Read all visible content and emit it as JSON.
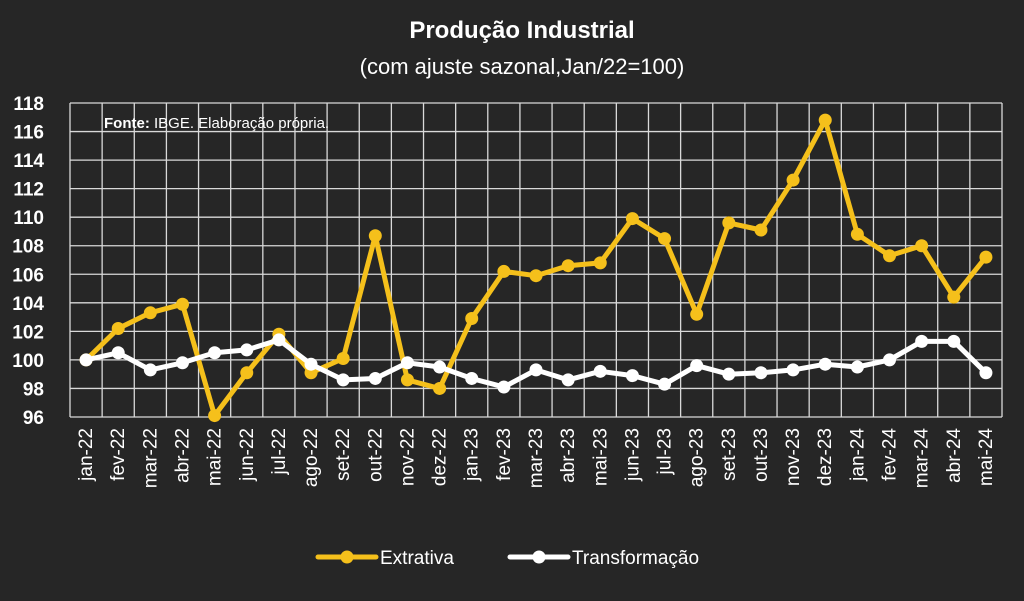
{
  "chart_data": {
    "type": "line",
    "title": "Produção Industrial",
    "subtitle": "(com ajuste sazonal,Jan/22=100)",
    "source_label": "Fonte:",
    "source_text": " IBGE. Elaboração própria.",
    "categories": [
      "jan-22",
      "fev-22",
      "mar-22",
      "abr-22",
      "mai-22",
      "jun-22",
      "jul-22",
      "ago-22",
      "set-22",
      "out-22",
      "nov-22",
      "dez-22",
      "jan-23",
      "fev-23",
      "mar-23",
      "abr-23",
      "mai-23",
      "jun-23",
      "jul-23",
      "ago-23",
      "set-23",
      "out-23",
      "nov-23",
      "dez-23",
      "jan-24",
      "fev-24",
      "mar-24",
      "abr-24",
      "mai-24"
    ],
    "series": [
      {
        "name": "Extrativa",
        "color": "#F5C01B",
        "values": [
          100.0,
          102.2,
          103.3,
          103.9,
          96.1,
          99.1,
          101.8,
          99.1,
          100.1,
          108.7,
          98.6,
          98.0,
          102.9,
          106.2,
          105.9,
          106.6,
          106.8,
          109.9,
          108.5,
          103.2,
          109.6,
          109.1,
          112.6,
          116.8,
          108.8,
          107.3,
          108.0,
          104.4,
          107.2
        ]
      },
      {
        "name": "Transformação",
        "color": "#FFFFFF",
        "values": [
          100.0,
          100.5,
          99.3,
          99.8,
          100.5,
          100.7,
          101.4,
          99.7,
          98.6,
          98.7,
          99.8,
          99.5,
          98.7,
          98.1,
          99.3,
          98.6,
          99.2,
          98.9,
          98.3,
          99.6,
          99.0,
          99.1,
          99.3,
          99.7,
          99.5,
          100.0,
          101.3,
          101.3,
          99.1
        ]
      }
    ],
    "ylim": [
      96,
      118
    ],
    "yticks": [
      96,
      98,
      100,
      102,
      104,
      106,
      108,
      110,
      112,
      114,
      116,
      118
    ],
    "grid": true,
    "legend_position": "bottom"
  }
}
